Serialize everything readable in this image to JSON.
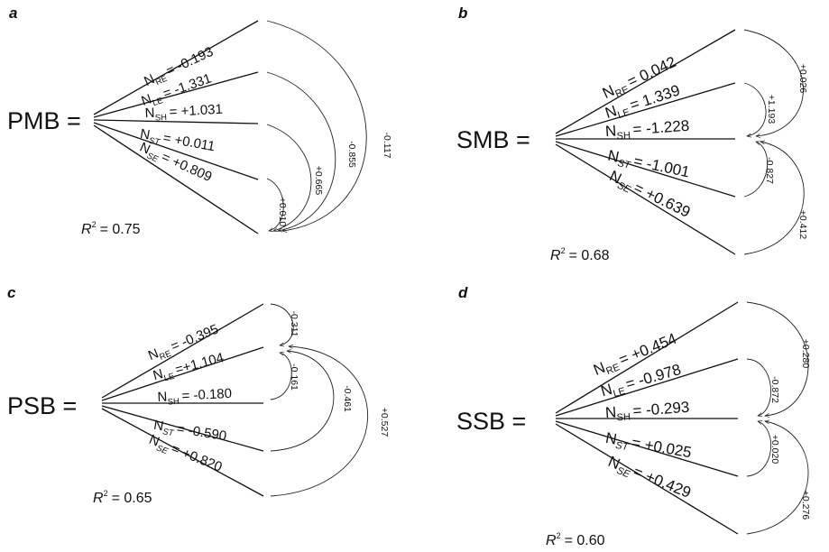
{
  "panels": [
    {
      "letter": "a",
      "lhs": "PMB =",
      "terms": [
        {
          "sub": "RE",
          "italic_sub": false,
          "value": "= -0.193"
        },
        {
          "sub": "LE",
          "italic_sub": false,
          "value": "= -1.331"
        },
        {
          "sub": "SH",
          "italic_sub": false,
          "value": "= +1.031"
        },
        {
          "sub": "ST",
          "italic_sub": true,
          "value": "= +0.011"
        },
        {
          "sub": "SE",
          "italic_sub": true,
          "value": "= +0.809"
        }
      ],
      "r2_label": "R",
      "r2_sup": "2",
      "r2_value": "= 0.75",
      "interactions": [
        "+0.010",
        "+0.665",
        "-0.855",
        "-0.117"
      ]
    },
    {
      "letter": "b",
      "lhs": "SMB =",
      "terms": [
        {
          "sub": "RE",
          "italic_sub": false,
          "value": "= 0.042"
        },
        {
          "sub": "LE",
          "italic_sub": false,
          "value": "= 1.339"
        },
        {
          "sub": "SH",
          "italic_sub": false,
          "value": "= -1.228"
        },
        {
          "sub": "ST",
          "italic_sub": true,
          "value": "= -1.001"
        },
        {
          "sub": "SE",
          "italic_sub": true,
          "value": "= +0.639"
        }
      ],
      "r2_label": "R",
      "r2_sup": "2",
      "r2_value": "= 0.68",
      "interactions": [
        "+1.193",
        "+0.026",
        "-0.827",
        "+0.412"
      ]
    },
    {
      "letter": "c",
      "lhs": "PSB =",
      "terms": [
        {
          "sub": "RE",
          "italic_sub": false,
          "value": "= -0.395"
        },
        {
          "sub": "LE",
          "italic_sub": false,
          "value": "=+1.104"
        },
        {
          "sub": "SH",
          "italic_sub": false,
          "value": "= -0.180"
        },
        {
          "sub": "ST",
          "italic_sub": true,
          "value": "= -0.590"
        },
        {
          "sub": "SE",
          "italic_sub": true,
          "value": "= +0.820"
        }
      ],
      "r2_label": "R",
      "r2_sup": "2",
      "r2_value": "= 0.65",
      "interactions": [
        "-0.311",
        "-0.161",
        "-0.461",
        "+0.527"
      ]
    },
    {
      "letter": "d",
      "lhs": "SSB =",
      "terms": [
        {
          "sub": "RE",
          "italic_sub": false,
          "value": "= +0.454"
        },
        {
          "sub": "LE",
          "italic_sub": false,
          "value": "= -0.978"
        },
        {
          "sub": "SH",
          "italic_sub": false,
          "value": "= -0.293"
        },
        {
          "sub": "ST",
          "italic_sub": true,
          "value": "= +0.025"
        },
        {
          "sub": "SE",
          "italic_sub": true,
          "value": "= +0.429"
        }
      ],
      "r2_label": "R",
      "r2_sup": "2",
      "r2_value": "= 0.60",
      "interactions": [
        "-0.872",
        "+0.280",
        "+0.020",
        "+0.276"
      ]
    }
  ]
}
